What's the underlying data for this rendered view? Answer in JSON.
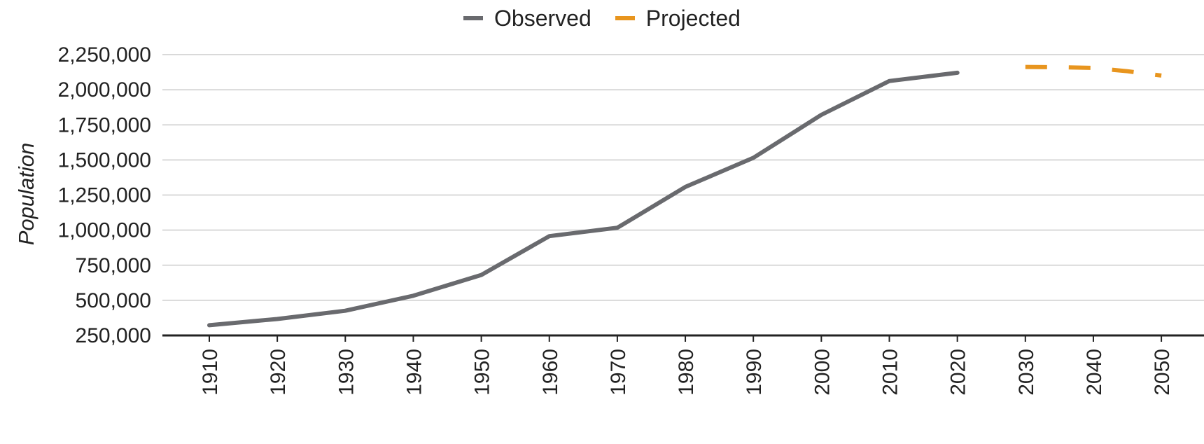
{
  "chart_data": {
    "type": "line",
    "xlabel": "",
    "ylabel": "Population",
    "ylim": [
      250000,
      2250000
    ],
    "xlim": [
      1910,
      2050
    ],
    "grid": true,
    "legend_position": "top-center",
    "y_ticks": [
      250000,
      500000,
      750000,
      1000000,
      1250000,
      1500000,
      1750000,
      2000000,
      2250000
    ],
    "y_tick_labels": [
      "250,000",
      "500,000",
      "750,000",
      "1,000,000",
      "1,250,000",
      "1,500,000",
      "1,750,000",
      "2,000,000",
      "2,250,000"
    ],
    "x_ticks": [
      1910,
      1920,
      1930,
      1940,
      1950,
      1960,
      1970,
      1980,
      1990,
      2000,
      2010,
      2020,
      2030,
      2040,
      2050
    ],
    "x_tick_labels": [
      "1910",
      "1920",
      "1930",
      "1940",
      "1950",
      "1960",
      "1970",
      "1980",
      "1990",
      "2000",
      "2010",
      "2020",
      "2030",
      "2040",
      "2050"
    ],
    "series": [
      {
        "name": "Observed",
        "color": "#696a6e",
        "style": "solid",
        "x": [
          1910,
          1920,
          1930,
          1940,
          1950,
          1960,
          1970,
          1980,
          1990,
          2000,
          2010,
          2020
        ],
        "y": [
          323000,
          367000,
          426000,
          533000,
          681000,
          957000,
          1017000,
          1308000,
          1515000,
          1821000,
          2062000,
          2121000
        ]
      },
      {
        "name": "Projected",
        "color": "#e8951e",
        "style": "dashed",
        "x": [
          2030,
          2035,
          2040,
          2045,
          2050
        ],
        "y": [
          2162000,
          2160000,
          2155000,
          2132000,
          2101000
        ]
      }
    ]
  }
}
